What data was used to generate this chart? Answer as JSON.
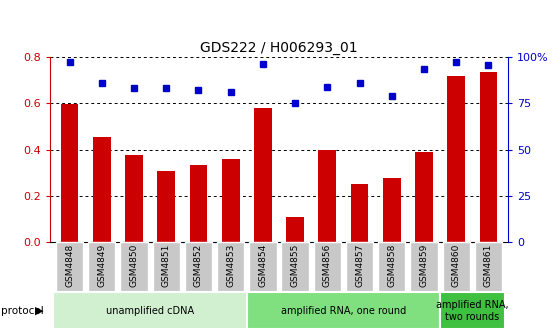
{
  "title": "GDS222 / H006293_01",
  "categories": [
    "GSM4848",
    "GSM4849",
    "GSM4850",
    "GSM4851",
    "GSM4852",
    "GSM4853",
    "GSM4854",
    "GSM4855",
    "GSM4856",
    "GSM4857",
    "GSM4858",
    "GSM4859",
    "GSM4860",
    "GSM4861"
  ],
  "log_ratio": [
    0.595,
    0.455,
    0.375,
    0.305,
    0.335,
    0.358,
    0.578,
    0.11,
    0.398,
    0.25,
    0.275,
    0.39,
    0.718,
    0.735
  ],
  "percentile_rank": [
    97.5,
    86.0,
    83.5,
    83.5,
    82.0,
    81.0,
    96.5,
    75.0,
    84.0,
    86.0,
    79.0,
    93.5,
    97.5,
    95.5
  ],
  "bar_color": "#cc0000",
  "dot_color": "#0000cc",
  "protocol_groups": [
    {
      "label": "unamplified cDNA",
      "start": 0,
      "end": 6,
      "color": "#d0f0d0"
    },
    {
      "label": "amplified RNA, one round",
      "start": 6,
      "end": 12,
      "color": "#80e080"
    },
    {
      "label": "amplified RNA,\ntwo rounds",
      "start": 12,
      "end": 14,
      "color": "#40c040"
    }
  ],
  "ylim_left": [
    0,
    0.8
  ],
  "ylim_right": [
    0,
    100
  ],
  "yticks_left": [
    0,
    0.2,
    0.4,
    0.6,
    0.8
  ],
  "yticks_right": [
    0,
    25,
    50,
    75,
    100
  ],
  "ytick_labels_right": [
    "0",
    "25",
    "50",
    "75",
    "100%"
  ],
  "ylabel_left_color": "#cc0000",
  "ylabel_right_color": "#0000cc",
  "bg_color": "#ffffff",
  "tick_label_bg": "#c8c8c8"
}
